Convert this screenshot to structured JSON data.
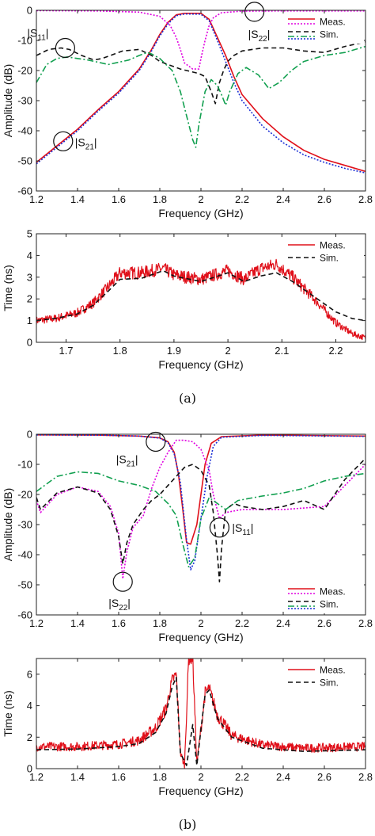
{
  "panel_labels": [
    "(a)",
    "(b)"
  ],
  "chart_data": [
    {
      "id": "a-amp",
      "type": "line",
      "xlabel": "Frequency (GHz)",
      "ylabel": "Amplitude (dB)",
      "xlim": [
        1.2,
        2.8
      ],
      "ylim": [
        -60,
        0
      ],
      "xticks": [
        "1.2",
        "1.4",
        "1.6",
        "1.8",
        "2",
        "2.2",
        "2.4",
        "2.6",
        "2.8"
      ],
      "yticks": [
        "0",
        "-10",
        "-20",
        "-30",
        "-40",
        "-50",
        "-60"
      ],
      "grid": false,
      "legend": {
        "position": "top-right",
        "entries": [
          "Meas.",
          "Sim."
        ]
      },
      "annotations": [
        {
          "base": "|S",
          "sub": "11",
          "close": "|",
          "at": [
            1.34,
            -12.5
          ]
        },
        {
          "base": "|S",
          "sub": "22",
          "close": "|",
          "at": [
            2.26,
            -0.5
          ]
        },
        {
          "base": "|S",
          "sub": "21",
          "close": "|",
          "at": [
            1.33,
            -43.5
          ]
        }
      ],
      "series": [
        {
          "color": "#e0101a",
          "dash": "solid",
          "width": 1.6,
          "x": [
            1.2,
            1.3,
            1.4,
            1.5,
            1.6,
            1.7,
            1.76,
            1.8,
            1.84,
            1.88,
            1.92,
            2.0,
            2.04,
            2.08,
            2.12,
            2.16,
            2.2,
            2.3,
            2.4,
            2.5,
            2.6,
            2.7,
            2.8
          ],
          "y": [
            -50.5,
            -45,
            -39.5,
            -33,
            -27,
            -19.5,
            -13,
            -8,
            -4,
            -1.5,
            -1,
            -1,
            -3,
            -9,
            -15,
            -22,
            -28,
            -36,
            -42,
            -46.5,
            -49.5,
            -51.5,
            -53.5
          ]
        },
        {
          "color": "#1a2fd6",
          "dash": "2,2",
          "width": 1.6,
          "x": [
            1.2,
            1.3,
            1.4,
            1.5,
            1.6,
            1.7,
            1.76,
            1.8,
            1.84,
            1.88,
            1.92,
            2.0,
            2.04,
            2.08,
            2.12,
            2.16,
            2.2,
            2.3,
            2.4,
            2.5,
            2.6,
            2.7,
            2.8
          ],
          "y": [
            -51,
            -45.5,
            -40,
            -33.5,
            -27.5,
            -20,
            -13.5,
            -8.5,
            -4.5,
            -1.8,
            -1.2,
            -1.3,
            -3.5,
            -10,
            -17,
            -24,
            -30,
            -38.5,
            -44,
            -48,
            -50.5,
            -52.5,
            -54
          ]
        },
        {
          "color": "#e000e0",
          "dash": "2,2",
          "width": 1.6,
          "x": [
            1.2,
            1.5,
            1.7,
            1.8,
            1.85,
            1.88,
            1.9,
            1.92,
            1.96,
            1.99,
            2.0,
            2.02,
            2.04,
            2.06,
            2.1,
            2.2,
            2.4,
            2.6,
            2.8
          ],
          "y": [
            -0.1,
            -0.2,
            -0.6,
            -2,
            -5,
            -9,
            -13,
            -17.5,
            -19.5,
            -19.5,
            -16,
            -10,
            -5,
            -2.5,
            -0.8,
            -0.3,
            -0.2,
            -0.2,
            -0.2
          ]
        },
        {
          "color": "#111111",
          "dash": "6,4",
          "width": 1.6,
          "x": [
            1.2,
            1.26,
            1.32,
            1.36,
            1.42,
            1.48,
            1.52,
            1.56,
            1.62,
            1.7,
            1.76,
            1.8,
            1.84,
            1.9,
            1.96,
            1.99,
            2.02,
            2.05,
            2.07,
            2.09,
            2.11,
            2.13,
            2.16,
            2.2,
            2.3,
            2.4,
            2.5,
            2.6,
            2.7,
            2.8
          ],
          "y": [
            -15,
            -13,
            -12.5,
            -13,
            -15,
            -16.5,
            -16,
            -15,
            -13.5,
            -13,
            -15,
            -17,
            -18,
            -19.5,
            -20.5,
            -21,
            -22,
            -27,
            -31,
            -24,
            -20,
            -17,
            -15,
            -13.5,
            -12.5,
            -12.5,
            -13.5,
            -14,
            -12,
            -10.5
          ]
        },
        {
          "color": "#12a050",
          "dash": "8,3,2,3",
          "width": 1.6,
          "x": [
            1.2,
            1.25,
            1.3,
            1.35,
            1.45,
            1.55,
            1.65,
            1.7,
            1.74,
            1.76,
            1.8,
            1.86,
            1.9,
            1.93,
            1.96,
            1.975,
            1.99,
            2.02,
            2.05,
            2.08,
            2.1,
            2.12,
            2.14,
            2.18,
            2.22,
            2.28,
            2.33,
            2.38,
            2.44,
            2.5,
            2.6,
            2.7,
            2.8
          ],
          "y": [
            -24,
            -18,
            -16,
            -15.5,
            -16.5,
            -18,
            -16.5,
            -15,
            -14,
            -14.5,
            -16,
            -20,
            -27,
            -35,
            -43,
            -45.5,
            -38,
            -27,
            -23,
            -25,
            -28,
            -31.5,
            -27,
            -21,
            -19,
            -21.5,
            -26,
            -24,
            -20,
            -17,
            -15,
            -14,
            -12
          ]
        }
      ]
    },
    {
      "id": "a-time",
      "type": "line",
      "xlabel": "Frequency (GHz)",
      "ylabel": "Time (ns)",
      "xlim": [
        1.645,
        2.255
      ],
      "ylim": [
        0,
        5
      ],
      "xticks": [
        "1.7",
        "1.8",
        "1.9",
        "2",
        "2.1",
        "2.2"
      ],
      "xtick_values": [
        1.7,
        1.8,
        1.9,
        2.0,
        2.1,
        2.2
      ],
      "yticks": [
        "0",
        "1",
        "2",
        "3",
        "4",
        "5"
      ],
      "grid": false,
      "legend": {
        "position": "top-right",
        "entries": [
          "Meas.",
          "Sim."
        ]
      },
      "series": [
        {
          "color": "#e0101a",
          "dash": "solid",
          "width": 1.2,
          "noise": true,
          "x": [
            1.645,
            1.68,
            1.72,
            1.75,
            1.78,
            1.8,
            1.84,
            1.88,
            1.9,
            1.95,
            2.0,
            2.03,
            2.06,
            2.09,
            2.12,
            2.16,
            2.2,
            2.23,
            2.255
          ],
          "y": [
            1.0,
            1.1,
            1.35,
            1.8,
            2.6,
            3.2,
            3.2,
            3.4,
            3.1,
            2.9,
            3.3,
            2.9,
            3.4,
            3.6,
            3.0,
            2.0,
            0.9,
            0.4,
            0.2
          ]
        },
        {
          "color": "#111111",
          "dash": "6,4",
          "width": 1.6,
          "x": [
            1.645,
            1.68,
            1.72,
            1.75,
            1.78,
            1.8,
            1.84,
            1.88,
            1.9,
            1.95,
            2.0,
            2.03,
            2.06,
            2.09,
            2.12,
            2.16,
            2.2,
            2.23,
            2.255
          ],
          "y": [
            1.0,
            1.1,
            1.3,
            1.7,
            2.4,
            2.9,
            2.95,
            3.3,
            3.05,
            2.8,
            3.2,
            2.8,
            3.05,
            3.2,
            2.8,
            2.1,
            1.4,
            1.1,
            1.0
          ]
        }
      ]
    },
    {
      "id": "b-amp",
      "type": "line",
      "xlabel": "Frequency (GHz)",
      "ylabel": "Amplitude (dB)",
      "xlim": [
        1.2,
        2.8
      ],
      "ylim": [
        -60,
        0
      ],
      "xticks": [
        "1.2",
        "1.4",
        "1.6",
        "1.8",
        "2",
        "2.2",
        "2.4",
        "2.6",
        "2.8"
      ],
      "yticks": [
        "0",
        "-10",
        "-20",
        "-30",
        "-40",
        "-50",
        "-60"
      ],
      "grid": false,
      "legend": {
        "position": "bottom-right",
        "entries": [
          "Meas.",
          "Sim."
        ]
      },
      "annotations": [
        {
          "base": "|S",
          "sub": "21",
          "close": "|",
          "at": [
            1.78,
            -2.5
          ]
        },
        {
          "base": "|S",
          "sub": "11",
          "close": "|",
          "at": [
            2.09,
            -31
          ]
        },
        {
          "base": "|S",
          "sub": "22",
          "close": "|",
          "at": [
            1.62,
            -49
          ]
        }
      ],
      "series": [
        {
          "color": "#e0101a",
          "dash": "solid",
          "width": 1.6,
          "x": [
            1.2,
            1.5,
            1.7,
            1.8,
            1.84,
            1.87,
            1.89,
            1.91,
            1.93,
            1.95,
            1.98,
            2.0,
            2.02,
            2.05,
            2.1,
            2.3,
            2.5,
            2.8
          ],
          "y": [
            -0.2,
            -0.3,
            -0.6,
            -1.2,
            -2.5,
            -6,
            -13,
            -24,
            -36,
            -36.5,
            -30,
            -20,
            -10,
            -3,
            -0.8,
            -0.3,
            -0.4,
            -0.6
          ]
        },
        {
          "color": "#1a2fd6",
          "dash": "2,2",
          "width": 1.6,
          "x": [
            1.2,
            1.5,
            1.7,
            1.8,
            1.84,
            1.87,
            1.9,
            1.93,
            1.95,
            1.97,
            2.0,
            2.03,
            2.06,
            2.1,
            2.3,
            2.5,
            2.8
          ],
          "y": [
            -0.2,
            -0.3,
            -0.6,
            -1.3,
            -2.8,
            -6.5,
            -16,
            -35,
            -45,
            -42,
            -28,
            -14,
            -4,
            -1,
            -0.4,
            -0.5,
            -0.7
          ]
        },
        {
          "color": "#e000e0",
          "dash": "2,2",
          "width": 1.6,
          "x": [
            1.2,
            1.22,
            1.3,
            1.4,
            1.5,
            1.56,
            1.6,
            1.62,
            1.64,
            1.67,
            1.72,
            1.76,
            1.8,
            1.84,
            1.88,
            1.92,
            1.96,
            2.0,
            2.04,
            2.06,
            2.09,
            2.12,
            2.2,
            2.4,
            2.6,
            2.8
          ],
          "y": [
            -22,
            -26,
            -20,
            -17.5,
            -19,
            -24,
            -33,
            -48,
            -39,
            -31,
            -27,
            -18,
            -11,
            -6,
            -2,
            -2,
            -2.5,
            -5,
            -12,
            -20,
            -28,
            -26,
            -25,
            -25,
            -24,
            -10
          ]
        },
        {
          "color": "#111111",
          "dash": "6,4",
          "width": 1.6,
          "x": [
            1.2,
            1.22,
            1.3,
            1.4,
            1.5,
            1.56,
            1.6,
            1.62,
            1.64,
            1.67,
            1.72,
            1.76,
            1.8,
            1.84,
            1.88,
            1.92,
            1.96,
            2.0,
            2.04,
            2.06,
            2.08,
            2.09,
            2.1,
            2.12,
            2.16,
            2.2,
            2.3,
            2.4,
            2.5,
            2.6,
            2.7,
            2.8
          ],
          "y": [
            -21,
            -25,
            -19.5,
            -17.5,
            -19.5,
            -25,
            -34,
            -43,
            -36,
            -30,
            -25,
            -22,
            -20,
            -17,
            -14,
            -11,
            -10,
            -12,
            -17,
            -26,
            -40,
            -49,
            -38,
            -25,
            -23,
            -24,
            -25,
            -24,
            -22,
            -25,
            -15,
            -8
          ]
        },
        {
          "color": "#12a050",
          "dash": "8,3,2,3",
          "width": 1.6,
          "x": [
            1.2,
            1.3,
            1.4,
            1.5,
            1.6,
            1.7,
            1.78,
            1.84,
            1.88,
            1.91,
            1.94,
            1.97,
            2.0,
            2.04,
            2.08,
            2.12,
            2.18,
            2.3,
            2.4,
            2.5,
            2.6,
            2.7,
            2.8
          ],
          "y": [
            -19,
            -14,
            -12.5,
            -13,
            -15.5,
            -17,
            -19,
            -23,
            -27,
            -36,
            -44,
            -41,
            -28,
            -21,
            -23,
            -25,
            -22,
            -20.5,
            -19.5,
            -18,
            -15.5,
            -14,
            -13
          ]
        }
      ]
    },
    {
      "id": "b-time",
      "type": "line",
      "xlabel": "Frequency (GHz)",
      "ylabel": "Time (ns)",
      "xlim": [
        1.2,
        2.8
      ],
      "ylim": [
        0,
        7
      ],
      "xticks": [
        "1.2",
        "1.4",
        "1.6",
        "1.8",
        "2",
        "2.2",
        "2.4",
        "2.6",
        "2.8"
      ],
      "yticks": [
        "0",
        "2",
        "4",
        "6"
      ],
      "ytick_values": [
        0,
        2,
        4,
        6
      ],
      "grid": false,
      "legend": {
        "position": "top-right",
        "entries": [
          "Meas.",
          "Sim."
        ]
      },
      "series": [
        {
          "color": "#e0101a",
          "dash": "solid",
          "width": 1.2,
          "noise": true,
          "x": [
            1.2,
            1.4,
            1.6,
            1.7,
            1.78,
            1.83,
            1.86,
            1.88,
            1.9,
            1.92,
            1.94,
            1.96,
            1.98,
            2.0,
            2.02,
            2.04,
            2.08,
            2.15,
            2.3,
            2.5,
            2.8
          ],
          "y": [
            1.4,
            1.4,
            1.55,
            1.8,
            2.6,
            3.8,
            5.6,
            6.0,
            1.0,
            0.2,
            7.0,
            7.0,
            0.3,
            2.5,
            4.8,
            5.1,
            3.4,
            2.1,
            1.5,
            1.3,
            1.4
          ]
        },
        {
          "color": "#111111",
          "dash": "6,4",
          "width": 1.6,
          "x": [
            1.2,
            1.4,
            1.6,
            1.7,
            1.78,
            1.83,
            1.86,
            1.88,
            1.9,
            1.93,
            1.96,
            1.98,
            2.0,
            2.02,
            2.04,
            2.08,
            2.15,
            2.3,
            2.5,
            2.8
          ],
          "y": [
            1.2,
            1.25,
            1.4,
            1.6,
            2.3,
            3.5,
            5.2,
            5.8,
            1.0,
            0.2,
            2.8,
            0.2,
            2.5,
            4.7,
            5.0,
            3.2,
            2.0,
            1.3,
            1.1,
            1.2
          ]
        }
      ]
    }
  ]
}
